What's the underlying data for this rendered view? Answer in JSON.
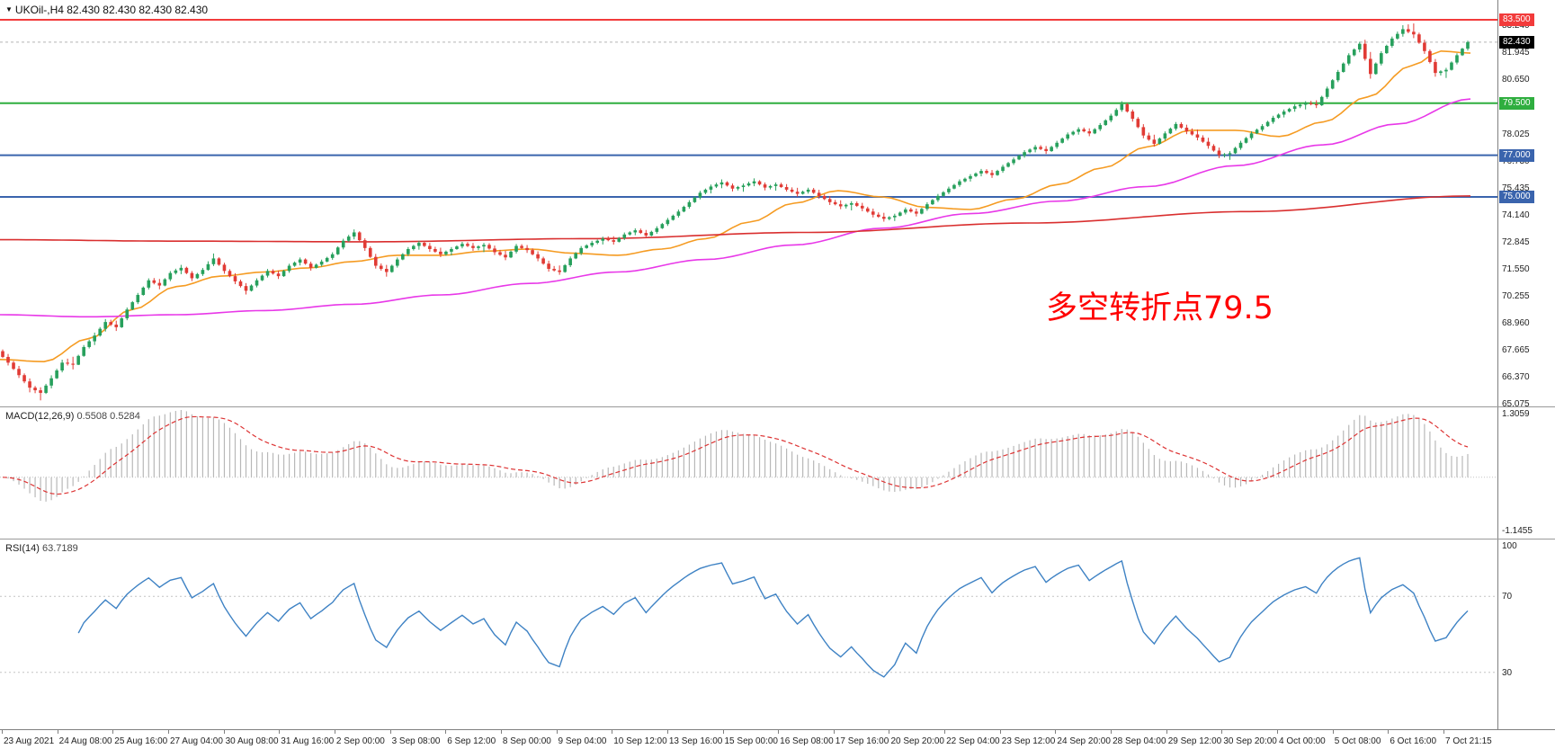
{
  "window": {
    "title": "UKOil-,H4 82.430 82.430 82.430 82.430"
  },
  "main_chart": {
    "title": "UKOil-,H4 82.430 82.430 82.430 82.430",
    "annotation_text": "多空转折点79.5"
  },
  "macd_panel": {
    "label": "MACD(12,26,9)",
    "values": "0.5508 0.5284",
    "axis_max": "1.3059",
    "axis_min": "-1.1455"
  },
  "rsi_panel": {
    "label": "RSI(14)",
    "value": "63.7189",
    "levels": [
      {
        "value": 100,
        "label": "100"
      },
      {
        "value": 70,
        "label": "70"
      },
      {
        "value": 30,
        "label": "30"
      }
    ]
  },
  "colors": {
    "background": "#ffffff",
    "candle_up": "#27a05c",
    "candle_down": "#e13b35",
    "ma_fast": "#f59b22",
    "ma_mid": "#e838e8",
    "ma_slow": "#d92f2f",
    "macd_hist": "#b8b8b8",
    "macd_signal": "#dd3333",
    "rsi_line": "#3e82c4",
    "grid_dotted": "#c4c4c4",
    "current_price_line": "#b5b5b5",
    "separator": "#9a9a9a"
  },
  "chart_data": {
    "type": "candlestick",
    "symbol": "UKOil-",
    "timeframe": "H4",
    "current_price": 82.43,
    "current_price_label": "82.430",
    "price_range": [
      64.95,
      84.45
    ],
    "y_ticks": [
      "83.240",
      "81.945",
      "80.650",
      "78.025",
      "76.730",
      "75.435",
      "74.140",
      "72.845",
      "71.550",
      "70.255",
      "68.960",
      "67.665",
      "66.370",
      "65.075"
    ],
    "x_labels": [
      "23 Aug 2021",
      "24 Aug 08:00",
      "25 Aug 16:00",
      "27 Aug 04:00",
      "30 Aug 08:00",
      "31 Aug 16:00",
      "2 Sep 00:00",
      "3 Sep 08:00",
      "6 Sep 12:00",
      "8 Sep 00:00",
      "9 Sep 04:00",
      "10 Sep 12:00",
      "13 Sep 16:00",
      "15 Sep 00:00",
      "16 Sep 08:00",
      "17 Sep 16:00",
      "20 Sep 20:00",
      "22 Sep 04:00",
      "23 Sep 12:00",
      "24 Sep 20:00",
      "28 Sep 04:00",
      "29 Sep 12:00",
      "30 Sep 20:00",
      "4 Oct 00:00",
      "5 Oct 08:00",
      "6 Oct 16:00",
      "7 Oct 21:15"
    ],
    "h_lines": [
      {
        "price": 83.5,
        "label": "83.500",
        "color": "#f23b3b"
      },
      {
        "price": 79.5,
        "label": "79.500",
        "color": "#2fae3f"
      },
      {
        "price": 77.0,
        "label": "77.000",
        "color": "#3a64ad"
      },
      {
        "price": 75.0,
        "label": "75.000",
        "color": "#3a64ad"
      }
    ],
    "candles_ohlc": [
      [
        67.6,
        67.75,
        66.9,
        67.05
      ],
      [
        67.05,
        67.2,
        66.3,
        66.45
      ],
      [
        66.45,
        66.6,
        65.6,
        65.85
      ],
      [
        65.85,
        66.0,
        65.2,
        65.6
      ],
      [
        65.6,
        66.45,
        65.45,
        66.3
      ],
      [
        66.3,
        67.2,
        66.2,
        67.05
      ],
      [
        67.05,
        67.4,
        66.7,
        66.95
      ],
      [
        66.95,
        67.9,
        66.9,
        67.8
      ],
      [
        67.8,
        68.5,
        67.6,
        68.35
      ],
      [
        68.35,
        69.15,
        68.2,
        69.0
      ],
      [
        69.0,
        69.2,
        68.55,
        68.75
      ],
      [
        68.75,
        69.7,
        68.65,
        69.6
      ],
      [
        69.6,
        70.4,
        69.5,
        70.3
      ],
      [
        70.3,
        71.1,
        70.2,
        71.0
      ],
      [
        71.0,
        71.2,
        70.55,
        70.75
      ],
      [
        70.75,
        71.45,
        70.65,
        71.35
      ],
      [
        71.35,
        71.75,
        71.15,
        71.6
      ],
      [
        71.6,
        71.7,
        70.95,
        71.1
      ],
      [
        71.1,
        71.6,
        71.0,
        71.5
      ],
      [
        71.5,
        72.3,
        71.4,
        72.05
      ],
      [
        72.05,
        72.15,
        71.3,
        71.45
      ],
      [
        71.45,
        71.6,
        70.8,
        70.95
      ],
      [
        70.95,
        71.1,
        70.3,
        70.5
      ],
      [
        70.5,
        71.1,
        70.4,
        71.0
      ],
      [
        71.0,
        71.55,
        70.9,
        71.45
      ],
      [
        71.45,
        71.6,
        71.05,
        71.2
      ],
      [
        71.2,
        71.8,
        71.1,
        71.7
      ],
      [
        71.7,
        72.1,
        71.55,
        72.0
      ],
      [
        72.0,
        72.1,
        71.45,
        71.6
      ],
      [
        71.6,
        72.0,
        71.5,
        71.9
      ],
      [
        71.9,
        72.35,
        71.8,
        72.25
      ],
      [
        72.25,
        73.0,
        72.15,
        72.9
      ],
      [
        72.9,
        73.45,
        72.75,
        73.3
      ],
      [
        73.3,
        73.4,
        72.4,
        72.55
      ],
      [
        72.55,
        72.7,
        71.55,
        71.7
      ],
      [
        71.7,
        71.9,
        71.15,
        71.4
      ],
      [
        71.4,
        72.1,
        71.3,
        72.0
      ],
      [
        72.0,
        72.6,
        71.9,
        72.5
      ],
      [
        72.5,
        72.9,
        72.3,
        72.8
      ],
      [
        72.8,
        72.95,
        72.35,
        72.5
      ],
      [
        72.5,
        72.7,
        72.1,
        72.25
      ],
      [
        72.25,
        72.6,
        72.05,
        72.5
      ],
      [
        72.5,
        72.85,
        72.4,
        72.75
      ],
      [
        72.75,
        72.9,
        72.4,
        72.55
      ],
      [
        72.55,
        72.8,
        72.25,
        72.7
      ],
      [
        72.7,
        72.85,
        72.2,
        72.35
      ],
      [
        72.35,
        72.55,
        71.95,
        72.1
      ],
      [
        72.1,
        72.75,
        72.0,
        72.65
      ],
      [
        72.65,
        72.8,
        72.3,
        72.45
      ],
      [
        72.45,
        72.6,
        71.9,
        72.05
      ],
      [
        72.05,
        72.2,
        71.4,
        71.55
      ],
      [
        71.55,
        71.8,
        71.25,
        71.4
      ],
      [
        71.4,
        72.15,
        71.3,
        72.05
      ],
      [
        72.05,
        72.65,
        71.95,
        72.55
      ],
      [
        72.55,
        72.9,
        72.45,
        72.8
      ],
      [
        72.8,
        73.1,
        72.6,
        73.0
      ],
      [
        73.0,
        73.2,
        72.7,
        72.85
      ],
      [
        72.85,
        73.3,
        72.75,
        73.2
      ],
      [
        73.2,
        73.5,
        73.05,
        73.4
      ],
      [
        73.4,
        73.55,
        73.0,
        73.15
      ],
      [
        73.15,
        73.6,
        73.05,
        73.5
      ],
      [
        73.5,
        74.0,
        73.4,
        73.9
      ],
      [
        73.9,
        74.4,
        73.8,
        74.3
      ],
      [
        74.3,
        74.85,
        74.2,
        74.75
      ],
      [
        74.75,
        75.3,
        74.65,
        75.2
      ],
      [
        75.2,
        75.6,
        75.0,
        75.5
      ],
      [
        75.5,
        75.85,
        75.3,
        75.7
      ],
      [
        75.7,
        75.8,
        75.25,
        75.4
      ],
      [
        75.4,
        75.65,
        75.15,
        75.55
      ],
      [
        75.55,
        75.9,
        75.4,
        75.75
      ],
      [
        75.75,
        75.85,
        75.3,
        75.45
      ],
      [
        75.45,
        75.7,
        75.2,
        75.6
      ],
      [
        75.6,
        75.75,
        75.25,
        75.35
      ],
      [
        75.35,
        75.55,
        75.0,
        75.15
      ],
      [
        75.15,
        75.45,
        75.05,
        75.35
      ],
      [
        75.35,
        75.5,
        74.9,
        75.05
      ],
      [
        75.05,
        75.2,
        74.6,
        74.75
      ],
      [
        74.75,
        74.95,
        74.4,
        74.55
      ],
      [
        74.55,
        74.8,
        74.25,
        74.7
      ],
      [
        74.7,
        74.85,
        74.3,
        74.45
      ],
      [
        74.45,
        74.6,
        74.0,
        74.15
      ],
      [
        74.15,
        74.35,
        73.8,
        73.95
      ],
      [
        73.95,
        74.2,
        73.75,
        74.1
      ],
      [
        74.1,
        74.5,
        74.0,
        74.4
      ],
      [
        74.4,
        74.55,
        74.05,
        74.2
      ],
      [
        74.2,
        74.75,
        74.1,
        74.65
      ],
      [
        74.65,
        75.15,
        74.55,
        75.05
      ],
      [
        75.05,
        75.5,
        74.95,
        75.4
      ],
      [
        75.4,
        75.85,
        75.3,
        75.75
      ],
      [
        75.75,
        76.1,
        75.6,
        76.0
      ],
      [
        76.0,
        76.35,
        75.85,
        76.25
      ],
      [
        76.25,
        76.4,
        75.9,
        76.05
      ],
      [
        76.05,
        76.55,
        75.95,
        76.45
      ],
      [
        76.45,
        76.9,
        76.35,
        76.8
      ],
      [
        76.8,
        77.25,
        76.7,
        77.15
      ],
      [
        77.15,
        77.5,
        77.0,
        77.4
      ],
      [
        77.4,
        77.55,
        77.05,
        77.2
      ],
      [
        77.2,
        77.7,
        77.1,
        77.6
      ],
      [
        77.6,
        78.1,
        77.5,
        78.0
      ],
      [
        78.0,
        78.35,
        77.85,
        78.25
      ],
      [
        78.25,
        78.4,
        77.9,
        78.05
      ],
      [
        78.05,
        78.55,
        77.95,
        78.45
      ],
      [
        78.45,
        79.0,
        78.35,
        78.9
      ],
      [
        78.9,
        79.6,
        78.8,
        79.45
      ],
      [
        79.45,
        79.55,
        78.6,
        78.75
      ],
      [
        78.75,
        78.9,
        77.8,
        77.95
      ],
      [
        77.95,
        78.2,
        77.4,
        77.55
      ],
      [
        77.55,
        78.15,
        77.45,
        78.05
      ],
      [
        78.05,
        78.6,
        77.95,
        78.5
      ],
      [
        78.5,
        78.65,
        78.0,
        78.15
      ],
      [
        78.15,
        78.4,
        77.7,
        77.85
      ],
      [
        77.85,
        78.05,
        77.3,
        77.45
      ],
      [
        77.45,
        77.6,
        76.85,
        77.0
      ],
      [
        77.0,
        77.2,
        76.7,
        77.1
      ],
      [
        77.1,
        77.7,
        77.0,
        77.6
      ],
      [
        77.6,
        78.15,
        77.5,
        78.05
      ],
      [
        78.05,
        78.5,
        77.95,
        78.4
      ],
      [
        78.4,
        78.9,
        78.3,
        78.8
      ],
      [
        78.8,
        79.2,
        78.65,
        79.1
      ],
      [
        79.1,
        79.45,
        78.95,
        79.35
      ],
      [
        79.35,
        79.6,
        79.1,
        79.5
      ],
      [
        79.5,
        79.7,
        79.25,
        79.4
      ],
      [
        79.4,
        80.3,
        79.3,
        80.2
      ],
      [
        80.2,
        81.1,
        80.1,
        81.0
      ],
      [
        81.0,
        81.9,
        80.9,
        81.8
      ],
      [
        81.8,
        82.45,
        81.65,
        82.35
      ],
      [
        82.35,
        82.7,
        80.65,
        80.9
      ],
      [
        80.9,
        82.0,
        80.8,
        81.9
      ],
      [
        81.9,
        82.7,
        81.8,
        82.6
      ],
      [
        82.6,
        83.25,
        82.45,
        83.05
      ],
      [
        83.05,
        83.47,
        82.6,
        82.8
      ],
      [
        82.8,
        82.95,
        81.85,
        82.0
      ],
      [
        82.0,
        82.15,
        80.75,
        80.95
      ],
      [
        80.95,
        81.2,
        80.6,
        81.1
      ],
      [
        81.1,
        81.9,
        81.0,
        81.8
      ],
      [
        81.8,
        82.5,
        81.7,
        82.43
      ]
    ],
    "moving_averages": [
      {
        "name": "ma-fast",
        "color": "#f59b22",
        "points": [
          [
            0.0,
            67.2
          ],
          [
            0.03,
            67.1
          ],
          [
            0.06,
            68.2
          ],
          [
            0.09,
            69.6
          ],
          [
            0.12,
            70.7
          ],
          [
            0.15,
            71.2
          ],
          [
            0.18,
            71.4
          ],
          [
            0.21,
            71.6
          ],
          [
            0.24,
            71.9
          ],
          [
            0.27,
            72.2
          ],
          [
            0.3,
            72.2
          ],
          [
            0.33,
            72.4
          ],
          [
            0.36,
            72.5
          ],
          [
            0.39,
            72.3
          ],
          [
            0.42,
            72.2
          ],
          [
            0.45,
            72.5
          ],
          [
            0.48,
            73.0
          ],
          [
            0.51,
            73.8
          ],
          [
            0.54,
            74.7
          ],
          [
            0.57,
            75.3
          ],
          [
            0.6,
            75.0
          ],
          [
            0.63,
            74.5
          ],
          [
            0.66,
            74.4
          ],
          [
            0.69,
            74.9
          ],
          [
            0.72,
            75.6
          ],
          [
            0.75,
            76.4
          ],
          [
            0.78,
            77.4
          ],
          [
            0.81,
            78.2
          ],
          [
            0.84,
            78.2
          ],
          [
            0.87,
            77.9
          ],
          [
            0.9,
            78.6
          ],
          [
            0.93,
            79.8
          ],
          [
            0.96,
            81.3
          ],
          [
            0.98,
            82.0
          ],
          [
            1.0,
            81.9
          ]
        ]
      },
      {
        "name": "ma-mid",
        "color": "#e838e8",
        "points": [
          [
            0.0,
            69.35
          ],
          [
            0.06,
            69.25
          ],
          [
            0.12,
            69.35
          ],
          [
            0.18,
            69.55
          ],
          [
            0.24,
            69.85
          ],
          [
            0.3,
            70.3
          ],
          [
            0.36,
            70.85
          ],
          [
            0.42,
            71.4
          ],
          [
            0.48,
            72.0
          ],
          [
            0.54,
            72.7
          ],
          [
            0.6,
            73.5
          ],
          [
            0.66,
            74.2
          ],
          [
            0.72,
            74.8
          ],
          [
            0.78,
            75.5
          ],
          [
            0.84,
            76.5
          ],
          [
            0.9,
            77.5
          ],
          [
            0.95,
            78.5
          ],
          [
            1.0,
            79.7
          ]
        ]
      },
      {
        "name": "ma-slow",
        "color": "#d92f2f",
        "points": [
          [
            0.0,
            72.95
          ],
          [
            0.12,
            72.88
          ],
          [
            0.25,
            72.85
          ],
          [
            0.4,
            73.0
          ],
          [
            0.55,
            73.3
          ],
          [
            0.7,
            73.75
          ],
          [
            0.85,
            74.3
          ],
          [
            1.0,
            75.05
          ]
        ]
      }
    ],
    "indicators": {
      "macd": {
        "fast": 12,
        "slow": 26,
        "signal_period": 9,
        "current_macd": 0.5508,
        "current_signal": 0.5284,
        "scale_max": 1.3059,
        "scale_min": -1.1455
      },
      "rsi": {
        "period": 14,
        "current": 63.7189,
        "levels": [
          70,
          30
        ]
      }
    }
  }
}
